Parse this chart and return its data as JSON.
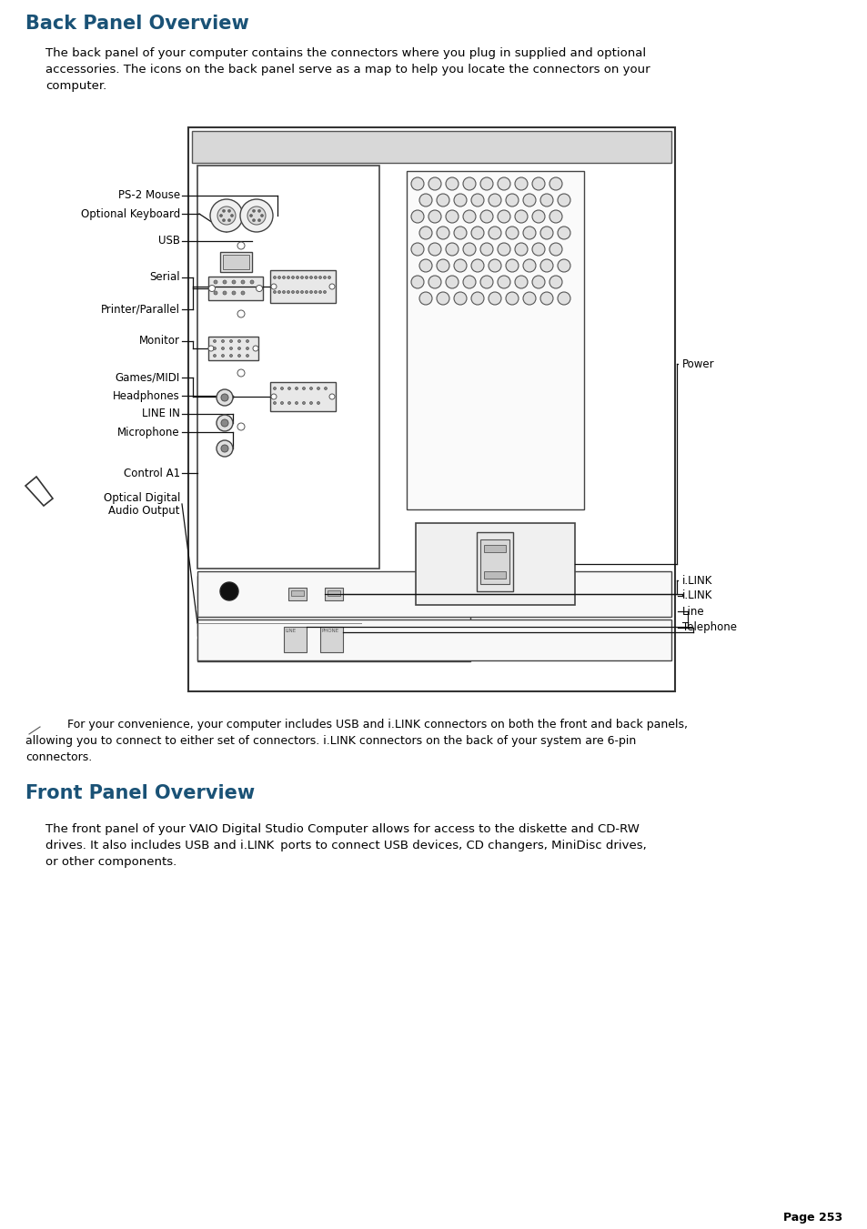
{
  "title1": "Back Panel Overview",
  "title2": "Front Panel Overview",
  "title_color": "#1a5276",
  "body_color": "#000000",
  "line_color": "#333333",
  "bg_color": "#ffffff",
  "para1_line1": "The back panel of your computer contains the connectors where you plug in supplied and optional",
  "para1_line2": "accessories. The icons on the back panel serve as a map to help you locate the connectors on your",
  "para1_line3": "computer.",
  "note_line1": " For your convenience, your computer includes USB and i.LINK connectors on both the front and back panels,",
  "note_line2": "allowing you to connect to either set of connectors. i.LINK connectors on the back of your system are 6-pin",
  "note_line3": "connectors.",
  "para2_line1": "The front panel of your VAIO Digital Studio Computer allows for access to the diskette and CD-RW",
  "para2_line2": "drives. It also includes USB and i.LINK  ports to connect USB devices, CD changers, MiniDisc drives,",
  "para2_line3": "or other components.",
  "page_text": "Page 253"
}
